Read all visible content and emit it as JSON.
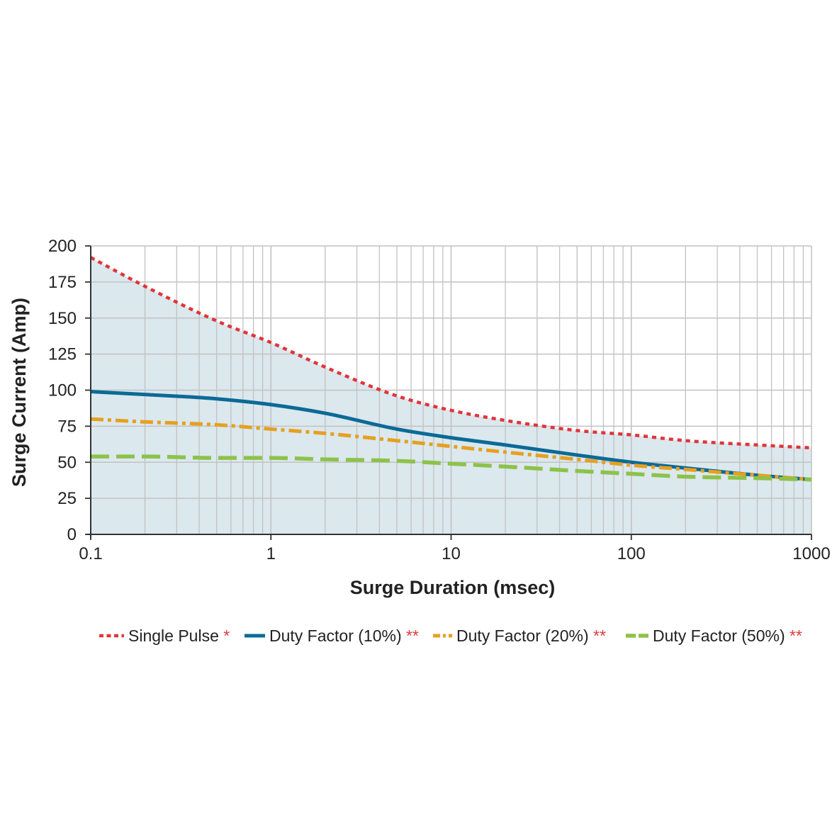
{
  "chart_data": {
    "type": "line",
    "title": "",
    "xlabel": "Surge Duration (msec)",
    "ylabel": "Surge Current (Amp)",
    "x_scale": "log",
    "xlim": [
      0.1,
      1000
    ],
    "ylim": [
      0,
      200
    ],
    "x_ticks": [
      "0.1",
      "1",
      "10",
      "100",
      "1000"
    ],
    "y_ticks": [
      "0",
      "25",
      "50",
      "75",
      "100",
      "125",
      "150",
      "175",
      "200"
    ],
    "grid": true,
    "legend_position": "bottom",
    "shaded_region_under": "Single Pulse",
    "colors": {
      "shade": "#dbe8ee",
      "grid": "#c2c2c2",
      "axis": "#333333",
      "footnote_mark": "#e03a3a"
    },
    "series": [
      {
        "name": "Single Pulse",
        "mark": "*",
        "color": "#e0353a",
        "style": "dotted",
        "x": [
          0.1,
          0.2,
          0.5,
          1,
          2,
          5,
          10,
          20,
          50,
          100,
          200,
          500,
          1000
        ],
        "y": [
          192,
          172,
          148,
          133,
          116,
          96,
          86,
          79,
          72,
          69,
          65,
          62,
          60
        ]
      },
      {
        "name": "Duty Factor (10%)",
        "mark": "**",
        "color": "#0b6a96",
        "style": "solid",
        "x": [
          0.1,
          0.2,
          0.5,
          1,
          2,
          5,
          10,
          20,
          50,
          100,
          200,
          500,
          1000
        ],
        "y": [
          99,
          97,
          94,
          90,
          84,
          73,
          67,
          62,
          55,
          50,
          46,
          41,
          38
        ]
      },
      {
        "name": "Duty Factor (20%)",
        "mark": "**",
        "color": "#e6a020",
        "style": "dashdot",
        "x": [
          0.1,
          0.2,
          0.5,
          1,
          2,
          5,
          10,
          20,
          50,
          100,
          200,
          500,
          1000
        ],
        "y": [
          80,
          78,
          76,
          73,
          70,
          65,
          61,
          57,
          52,
          48,
          45,
          41,
          38
        ]
      },
      {
        "name": "Duty Factor (50%)",
        "mark": "**",
        "color": "#8dc24a",
        "style": "dashed",
        "x": [
          0.1,
          0.2,
          0.5,
          1,
          2,
          5,
          10,
          20,
          50,
          100,
          200,
          500,
          1000
        ],
        "y": [
          54,
          54,
          53,
          53,
          52,
          51,
          49,
          47,
          44,
          42,
          40,
          39,
          38
        ]
      }
    ]
  }
}
